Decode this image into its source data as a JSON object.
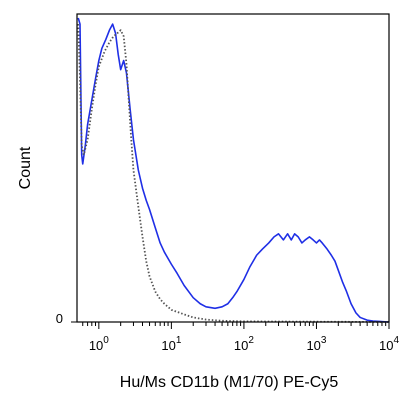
{
  "chart_data": {
    "type": "line",
    "title": "",
    "xlabel": "Hu/Ms CD11b (M1/70) PE-Cy5",
    "ylabel": "Count",
    "x_scale": "log",
    "xlim": [
      0.5,
      10000
    ],
    "ylim": [
      0,
      100
    ],
    "x_ticks": [
      {
        "value": 1,
        "base": "10",
        "exp": "0"
      },
      {
        "value": 10,
        "base": "10",
        "exp": "1"
      },
      {
        "value": 100,
        "base": "10",
        "exp": "2"
      },
      {
        "value": 1000,
        "base": "10",
        "exp": "3"
      },
      {
        "value": 10000,
        "base": "10",
        "exp": "4"
      }
    ],
    "y_ticks": [
      {
        "value": 0,
        "label": "0"
      }
    ],
    "grid": false,
    "series": [
      {
        "color": "#1f2fe6",
        "style": "solid",
        "points": [
          [
            0.52,
            100
          ],
          [
            0.55,
            98
          ],
          [
            0.58,
            55
          ],
          [
            0.6,
            52
          ],
          [
            0.65,
            58
          ],
          [
            0.7,
            65
          ],
          [
            0.8,
            73
          ],
          [
            0.9,
            80
          ],
          [
            1.0,
            86
          ],
          [
            1.1,
            90
          ],
          [
            1.25,
            93
          ],
          [
            1.4,
            96
          ],
          [
            1.55,
            98
          ],
          [
            1.7,
            95
          ],
          [
            1.85,
            88
          ],
          [
            2.0,
            83
          ],
          [
            2.2,
            86
          ],
          [
            2.4,
            82
          ],
          [
            2.7,
            70
          ],
          [
            3.0,
            60
          ],
          [
            3.5,
            50
          ],
          [
            4.0,
            44
          ],
          [
            4.5,
            40
          ],
          [
            5.0,
            37
          ],
          [
            6.0,
            31
          ],
          [
            7.0,
            26
          ],
          [
            8.0,
            23
          ],
          [
            10.0,
            19
          ],
          [
            12,
            16
          ],
          [
            15,
            12
          ],
          [
            20,
            8
          ],
          [
            25,
            6
          ],
          [
            30,
            5
          ],
          [
            40,
            4.5
          ],
          [
            50,
            5
          ],
          [
            60,
            6
          ],
          [
            70,
            8
          ],
          [
            80,
            10
          ],
          [
            100,
            14
          ],
          [
            120,
            18
          ],
          [
            150,
            22
          ],
          [
            180,
            24
          ],
          [
            220,
            26
          ],
          [
            260,
            28
          ],
          [
            300,
            29
          ],
          [
            350,
            27
          ],
          [
            400,
            29
          ],
          [
            450,
            27
          ],
          [
            500,
            29
          ],
          [
            560,
            28
          ],
          [
            630,
            26
          ],
          [
            700,
            27
          ],
          [
            800,
            28
          ],
          [
            900,
            27
          ],
          [
            1000,
            26
          ],
          [
            1100,
            27
          ],
          [
            1200,
            26
          ],
          [
            1400,
            24
          ],
          [
            1600,
            22
          ],
          [
            1800,
            20
          ],
          [
            2000,
            17
          ],
          [
            2300,
            13
          ],
          [
            2600,
            10
          ],
          [
            3000,
            6
          ],
          [
            3500,
            3
          ],
          [
            4000,
            1.5
          ],
          [
            5000,
            0.6
          ],
          [
            6000,
            0.3
          ],
          [
            10000,
            0
          ]
        ]
      },
      {
        "color": "#555555",
        "style": "dotted",
        "points": [
          [
            0.52,
            98
          ],
          [
            0.55,
            80
          ],
          [
            0.58,
            58
          ],
          [
            0.62,
            55
          ],
          [
            0.7,
            60
          ],
          [
            0.8,
            70
          ],
          [
            0.9,
            78
          ],
          [
            1.0,
            84
          ],
          [
            1.2,
            89
          ],
          [
            1.4,
            92
          ],
          [
            1.6,
            94
          ],
          [
            1.8,
            95
          ],
          [
            2.0,
            96
          ],
          [
            2.2,
            94
          ],
          [
            2.4,
            85
          ],
          [
            2.6,
            72
          ],
          [
            2.8,
            60
          ],
          [
            3.0,
            50
          ],
          [
            3.5,
            38
          ],
          [
            4.0,
            28
          ],
          [
            4.5,
            20
          ],
          [
            5.0,
            15
          ],
          [
            6.0,
            10
          ],
          [
            7.0,
            7.5
          ],
          [
            8.0,
            6
          ],
          [
            10,
            4
          ],
          [
            15,
            2.5
          ],
          [
            20,
            1.5
          ],
          [
            30,
            0.8
          ],
          [
            50,
            0.4
          ],
          [
            100,
            0.2
          ],
          [
            1000,
            0.1
          ],
          [
            10000,
            0
          ]
        ]
      }
    ]
  }
}
